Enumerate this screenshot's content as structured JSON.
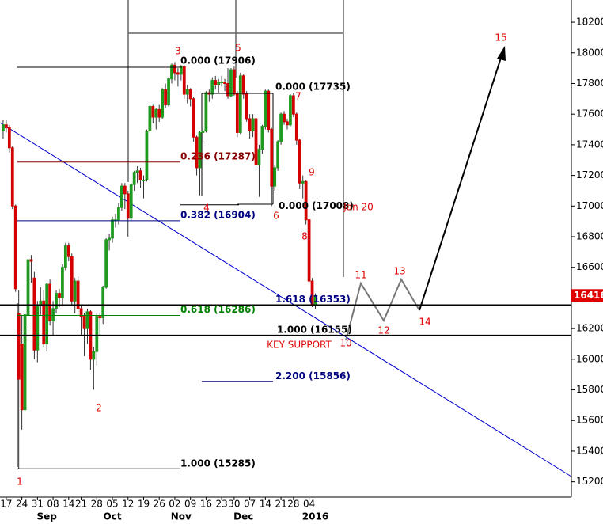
{
  "chart_data": {
    "type": "candlestick",
    "up_color": "#1f9a1f",
    "down_color": "#d40000",
    "ylim": [
      15100,
      18345
    ],
    "yticks": [
      15200,
      15400,
      15600,
      15800,
      16000,
      16200,
      16400,
      16600,
      16800,
      17000,
      17200,
      17400,
      17600,
      17800,
      18000,
      18200
    ],
    "xlim": [
      -1,
      182
    ],
    "xticks": [
      {
        "value": 1,
        "label": "17"
      },
      {
        "value": 6,
        "label": "24"
      },
      {
        "value": 11,
        "label": "31"
      },
      {
        "value": 16,
        "label": "08"
      },
      {
        "value": 21,
        "label": "14"
      },
      {
        "value": 25,
        "label": "21"
      },
      {
        "value": 30,
        "label": "28"
      },
      {
        "value": 35,
        "label": "05"
      },
      {
        "value": 40,
        "label": "12"
      },
      {
        "value": 45,
        "label": "19"
      },
      {
        "value": 50,
        "label": "26"
      },
      {
        "value": 55,
        "label": "02"
      },
      {
        "value": 60,
        "label": "09"
      },
      {
        "value": 65,
        "label": "16"
      },
      {
        "value": 70,
        "label": "23"
      },
      {
        "value": 74,
        "label": "30"
      },
      {
        "value": 79,
        "label": "07"
      },
      {
        "value": 84,
        "label": "14"
      },
      {
        "value": 89,
        "label": "21"
      },
      {
        "value": 93,
        "label": "28"
      },
      {
        "value": 98,
        "label": "04"
      }
    ],
    "month_labels": [
      {
        "value": 14,
        "label": "Sep"
      },
      {
        "value": 35,
        "label": "Oct"
      },
      {
        "value": 57,
        "label": "Nov"
      },
      {
        "value": 77,
        "label": "Dec"
      },
      {
        "value": 100,
        "label": "2016"
      }
    ],
    "ohlc": [
      [
        17490,
        17560,
        17440,
        17530
      ],
      [
        17530,
        17560,
        17480,
        17510
      ],
      [
        17510,
        17530,
        17350,
        17380
      ],
      [
        17380,
        17390,
        16980,
        17000
      ],
      [
        17000,
        17010,
        16440,
        16460
      ],
      [
        16300,
        16450,
        15285,
        15870
      ],
      [
        16100,
        16290,
        15540,
        15670
      ],
      [
        15670,
        16300,
        15660,
        16290
      ],
      [
        16290,
        16660,
        16200,
        16650
      ],
      [
        16650,
        16680,
        16500,
        16640
      ],
      [
        16530,
        16570,
        16000,
        16060
      ],
      [
        16060,
        16380,
        15980,
        16350
      ],
      [
        16350,
        16470,
        16290,
        16380
      ],
      [
        16380,
        16450,
        16080,
        16100
      ],
      [
        16100,
        16500,
        16050,
        16490
      ],
      [
        16490,
        16520,
        16220,
        16250
      ],
      [
        16250,
        16380,
        16150,
        16330
      ],
      [
        16330,
        16450,
        16300,
        16430
      ],
      [
        16430,
        16460,
        16340,
        16400
      ],
      [
        16400,
        16620,
        16350,
        16600
      ],
      [
        16600,
        16760,
        16580,
        16740
      ],
      [
        16740,
        16760,
        16640,
        16670
      ],
      [
        16670,
        16690,
        16350,
        16380
      ],
      [
        16380,
        16530,
        16300,
        16510
      ],
      [
        16510,
        16540,
        16290,
        16330
      ],
      [
        16330,
        16350,
        16150,
        16280
      ],
      [
        16280,
        16300,
        16020,
        16200
      ],
      [
        16200,
        16330,
        16100,
        16310
      ],
      [
        16310,
        16320,
        15930,
        16000
      ],
      [
        16000,
        16080,
        15800,
        16050
      ],
      [
        16050,
        16300,
        15960,
        16280
      ],
      [
        16280,
        16300,
        16150,
        16270
      ],
      [
        16270,
        16480,
        16230,
        16470
      ],
      [
        16470,
        16790,
        16460,
        16780
      ],
      [
        16780,
        16820,
        16710,
        16790
      ],
      [
        16790,
        16930,
        16760,
        16910
      ],
      [
        16910,
        16950,
        16860,
        16910
      ],
      [
        16910,
        17020,
        16880,
        16990
      ],
      [
        16990,
        17150,
        16970,
        17130
      ],
      [
        17130,
        17150,
        16980,
        17080
      ],
      [
        17080,
        17100,
        16800,
        16920
      ],
      [
        16920,
        17150,
        16900,
        17140
      ],
      [
        17140,
        17230,
        17100,
        17220
      ],
      [
        17220,
        17260,
        17150,
        17230
      ],
      [
        17230,
        17250,
        17120,
        17170
      ],
      [
        17170,
        17200,
        17050,
        17170
      ],
      [
        17170,
        17500,
        17160,
        17490
      ],
      [
        17490,
        17660,
        17480,
        17650
      ],
      [
        17650,
        17660,
        17540,
        17580
      ],
      [
        17580,
        17640,
        17500,
        17630
      ],
      [
        17630,
        17660,
        17550,
        17580
      ],
      [
        17580,
        17770,
        17570,
        17760
      ],
      [
        17760,
        17800,
        17640,
        17660
      ],
      [
        17660,
        17840,
        17650,
        17830
      ],
      [
        17830,
        17930,
        17800,
        17920
      ],
      [
        17920,
        17940,
        17820,
        17870
      ],
      [
        17870,
        17900,
        17780,
        17860
      ],
      [
        17860,
        17920,
        17820,
        17910
      ],
      [
        17910,
        17920,
        17700,
        17730
      ],
      [
        17730,
        17790,
        17670,
        17760
      ],
      [
        17760,
        17770,
        17650,
        17700
      ],
      [
        17700,
        17710,
        17420,
        17450
      ],
      [
        17450,
        17460,
        17200,
        17250
      ],
      [
        17250,
        17490,
        17070,
        17480
      ],
      [
        17480,
        17520,
        17420,
        17490
      ],
      [
        17490,
        17750,
        17480,
        17740
      ],
      [
        17740,
        17760,
        17680,
        17730
      ],
      [
        17730,
        17840,
        17700,
        17820
      ],
      [
        17820,
        17850,
        17760,
        17790
      ],
      [
        17790,
        17830,
        17740,
        17810
      ],
      [
        17810,
        17850,
        17780,
        17810
      ],
      [
        17810,
        17830,
        17750,
        17800
      ],
      [
        17800,
        17900,
        17700,
        17720
      ],
      [
        17720,
        17900,
        17710,
        17890
      ],
      [
        17890,
        17910,
        17720,
        17730
      ],
      [
        17730,
        17750,
        17450,
        17480
      ],
      [
        17480,
        17870,
        17470,
        17850
      ],
      [
        17850,
        17860,
        17700,
        17730
      ],
      [
        17730,
        17750,
        17550,
        17570
      ],
      [
        17570,
        17600,
        17440,
        17490
      ],
      [
        17490,
        17600,
        17450,
        17570
      ],
      [
        17570,
        17580,
        17250,
        17270
      ],
      [
        17270,
        17400,
        17060,
        17370
      ],
      [
        17370,
        17530,
        17340,
        17520
      ],
      [
        17520,
        17760,
        17500,
        17750
      ],
      [
        17750,
        17760,
        17480,
        17500
      ],
      [
        17500,
        17510,
        17000,
        17130
      ],
      [
        17130,
        17270,
        17100,
        17250
      ],
      [
        17250,
        17430,
        17230,
        17420
      ],
      [
        17420,
        17610,
        17400,
        17600
      ],
      [
        17600,
        17620,
        17530,
        17550
      ],
      [
        17550,
        17570,
        17500,
        17530
      ],
      [
        17530,
        17730,
        17520,
        17720
      ],
      [
        17720,
        17740,
        17580,
        17600
      ],
      [
        17600,
        17610,
        17400,
        17430
      ],
      [
        17430,
        17440,
        17110,
        17150
      ],
      [
        17150,
        17200,
        17050,
        17160
      ],
      [
        17160,
        17170,
        16880,
        16910
      ],
      [
        16910,
        16920,
        16500,
        16510
      ],
      [
        16510,
        16530,
        16340,
        16350
      ],
      [
        16350,
        16430,
        16330,
        16416
      ]
    ],
    "last_price": 16416,
    "fib_levels": [
      {
        "value": 17906,
        "label": "0.000 (17906)",
        "color": "#000000"
      },
      {
        "value": 17735,
        "label": "0.000 (17735)",
        "color": "#000000"
      },
      {
        "value": 17287,
        "label": "0.236 (17287)",
        "color": "#8b0000"
      },
      {
        "value": 17008,
        "label": "0.000 (17008)",
        "color": "#000000"
      },
      {
        "value": 16904,
        "label": "0.382 (16904)",
        "color": "#000080"
      },
      {
        "value": 16353,
        "label": "1.618 (16353)",
        "color": "#000080"
      },
      {
        "value": 16286,
        "label": "0.618 (16286)",
        "color": "#008000"
      },
      {
        "value": 16155,
        "label": "1.000 (16155)",
        "color": "#000000"
      },
      {
        "value": 15856,
        "label": "2.200 (15856)",
        "color": "#000080"
      },
      {
        "value": 15285,
        "label": "1.000 (15285)",
        "color": "#000000"
      }
    ],
    "wave_labels": [
      "1",
      "2",
      "3",
      "4",
      "5",
      "6",
      "7",
      "8",
      "9",
      "Jan 20",
      "10",
      "11",
      "12",
      "13",
      "14",
      "15"
    ],
    "support_label": "KEY SUPPORT"
  }
}
